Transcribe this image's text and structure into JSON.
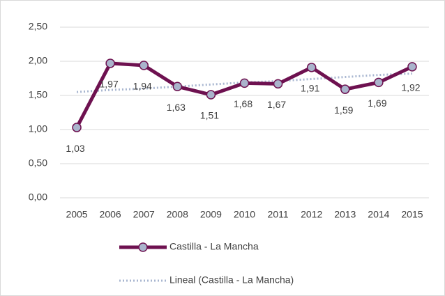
{
  "chart_data": {
    "type": "line",
    "categories": [
      "2005",
      "2006",
      "2007",
      "2008",
      "2009",
      "2010",
      "2011",
      "2012",
      "2013",
      "2014",
      "2015"
    ],
    "series": [
      {
        "name": "Castilla - La Mancha",
        "color": "#6e1150",
        "marker_color": "#aab4cc",
        "values": [
          1.03,
          1.97,
          1.94,
          1.63,
          1.51,
          1.68,
          1.67,
          1.91,
          1.59,
          1.69,
          1.92
        ],
        "value_labels": [
          "1,03",
          "1,97",
          "1,94",
          "1,63",
          "1,51",
          "1,68",
          "1,67",
          "1,91",
          "1,59",
          "1,69",
          "1,92"
        ]
      },
      {
        "name": "Lineal (Castilla - La Mancha)",
        "color": "#a8b6d0",
        "dashed": true,
        "values": [
          1.55,
          1.58,
          1.6,
          1.63,
          1.66,
          1.69,
          1.71,
          1.74,
          1.77,
          1.8,
          1.82
        ]
      }
    ],
    "ylim": [
      0,
      2.5
    ],
    "yticks": [
      {
        "value": 0,
        "label": "0,00"
      },
      {
        "value": 0.5,
        "label": "0,50"
      },
      {
        "value": 1,
        "label": "1,00"
      },
      {
        "value": 1.5,
        "label": "1,50"
      },
      {
        "value": 2,
        "label": "2,00"
      },
      {
        "value": 2.5,
        "label": "2,50"
      }
    ],
    "grid": true
  }
}
